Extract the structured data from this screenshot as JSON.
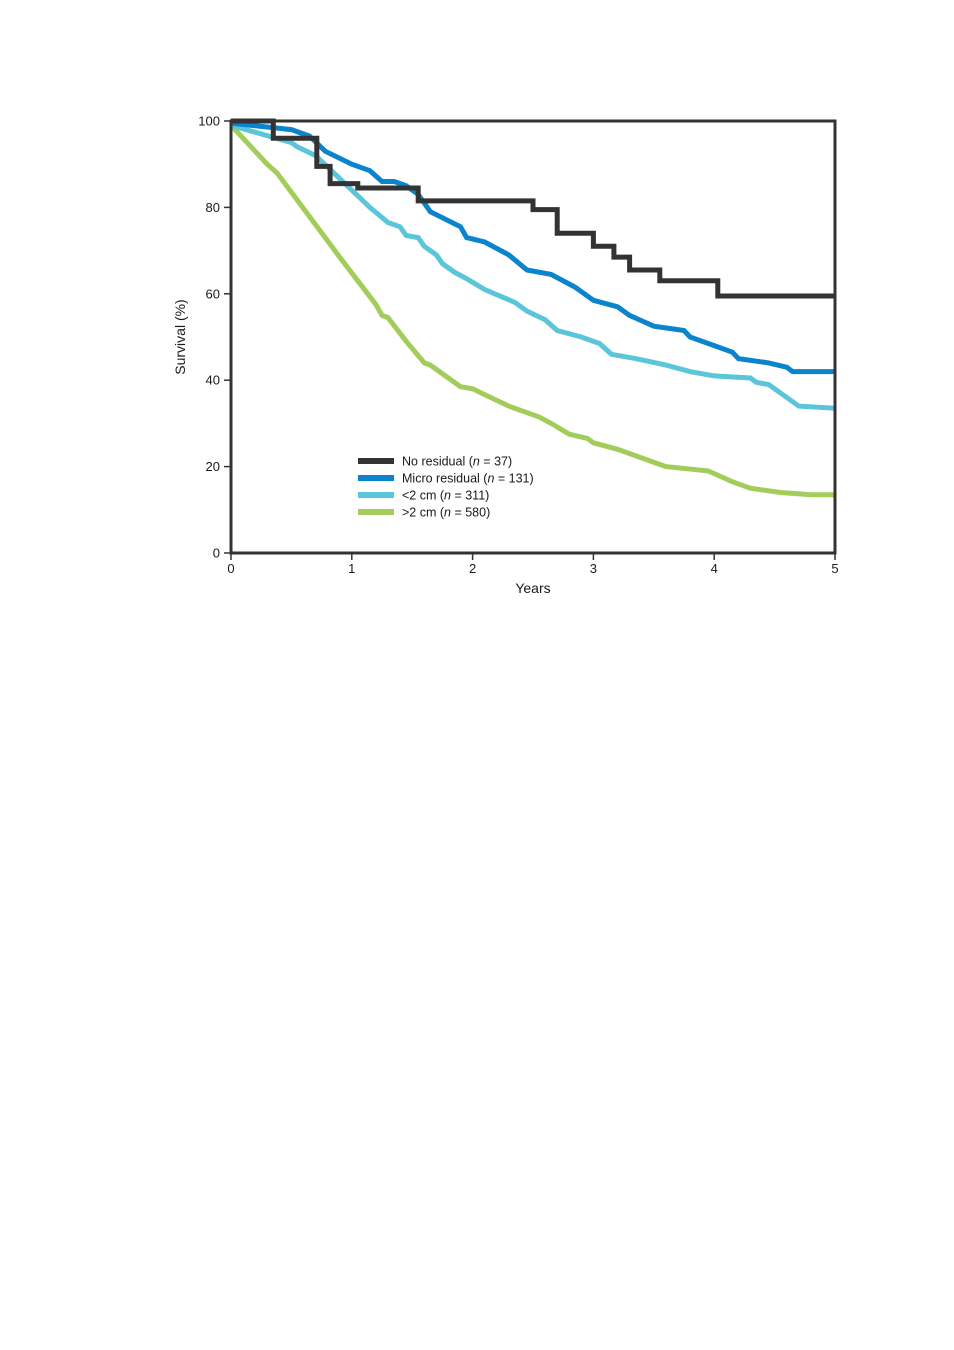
{
  "chart_data": {
    "type": "line",
    "title": "",
    "xlabel": "Years",
    "ylabel": "Survival (%)",
    "xlim": [
      0,
      5
    ],
    "ylim": [
      0,
      100
    ],
    "x_ticks": [
      "0",
      "1",
      "2",
      "3",
      "4",
      "5"
    ],
    "y_ticks": [
      "0",
      "20",
      "40",
      "60",
      "80",
      "100"
    ],
    "grid": false,
    "legend_position": "bottom-left",
    "series": [
      {
        "name_prefix": "No residual (",
        "name_n": "n",
        "name_suffix": " = 37)",
        "color": "#333333",
        "step": true,
        "x": [
          0,
          0.35,
          0.35,
          0.71,
          0.71,
          0.82,
          0.82,
          1.05,
          1.05,
          1.55,
          1.55,
          2.5,
          2.5,
          2.7,
          2.7,
          3.0,
          3.0,
          3.17,
          3.17,
          3.3,
          3.3,
          3.55,
          3.55,
          4.03,
          4.03,
          5.0
        ],
        "y": [
          100,
          100,
          96,
          96,
          89.5,
          89.5,
          85.5,
          85.5,
          84.5,
          84.5,
          81.5,
          81.5,
          79.5,
          79.5,
          74,
          74,
          71,
          71,
          68.5,
          68.5,
          65.5,
          65.5,
          63,
          63,
          59.5,
          59.5
        ]
      },
      {
        "name_prefix": "Micro residual (",
        "name_n": "n",
        "name_suffix": " = 131)",
        "color": "#0a84cc",
        "step": false,
        "x": [
          0,
          0.5,
          0.65,
          0.78,
          1.0,
          1.15,
          1.25,
          1.35,
          1.45,
          1.55,
          1.65,
          1.9,
          1.95,
          2.1,
          2.3,
          2.45,
          2.65,
          2.85,
          2.9,
          3.0,
          3.2,
          3.3,
          3.5,
          3.75,
          3.8,
          4.0,
          4.15,
          4.2,
          4.45,
          4.6,
          4.65,
          5.0
        ],
        "y": [
          99.5,
          98,
          96.5,
          93,
          90,
          88.5,
          86,
          86,
          85,
          83,
          79,
          75.5,
          73,
          72,
          69,
          65.5,
          64.5,
          61.5,
          60.5,
          58.5,
          57,
          55,
          52.5,
          51.5,
          50,
          48,
          46.5,
          45,
          44,
          43,
          42,
          42
        ]
      },
      {
        "name_prefix": "<2 cm (",
        "name_n": "n",
        "name_suffix": " = 311)",
        "color": "#5bc5d9",
        "step": false,
        "x": [
          0,
          0.5,
          0.55,
          0.7,
          0.85,
          1.0,
          1.15,
          1.3,
          1.4,
          1.45,
          1.55,
          1.6,
          1.7,
          1.75,
          1.85,
          1.95,
          2.1,
          2.35,
          2.45,
          2.6,
          2.7,
          2.9,
          3.05,
          3.15,
          3.35,
          3.6,
          3.8,
          4.0,
          4.3,
          4.35,
          4.45,
          4.7,
          5.0
        ],
        "y": [
          99,
          95,
          94,
          92,
          88,
          84,
          80,
          76.5,
          75.5,
          73.5,
          73,
          71,
          69,
          67,
          65,
          63.5,
          61,
          58,
          56,
          54,
          51.5,
          50,
          48.5,
          46,
          45,
          43.5,
          42,
          41,
          40.5,
          39.5,
          39,
          34,
          33.5
        ]
      },
      {
        "name_prefix": ">2 cm (",
        "name_n": "n",
        "name_suffix": " = 580)",
        "color": "#a2cd5a",
        "step": false,
        "x": [
          0,
          0.3,
          0.38,
          0.5,
          0.7,
          0.9,
          1.05,
          1.2,
          1.25,
          1.3,
          1.45,
          1.6,
          1.65,
          1.75,
          1.9,
          2.0,
          2.15,
          2.3,
          2.5,
          2.55,
          2.65,
          2.8,
          2.95,
          3.0,
          3.2,
          3.6,
          3.95,
          4.15,
          4.3,
          4.55,
          4.8,
          5.0
        ],
        "y": [
          99,
          90,
          88,
          83.5,
          76,
          68.5,
          63,
          57.5,
          55,
          54.5,
          49,
          44,
          43.5,
          41.5,
          38.5,
          38,
          36,
          34,
          32,
          31.5,
          30,
          27.5,
          26.5,
          25.5,
          24,
          20,
          19,
          16.5,
          15,
          14,
          13.5,
          13.5
        ]
      }
    ]
  }
}
